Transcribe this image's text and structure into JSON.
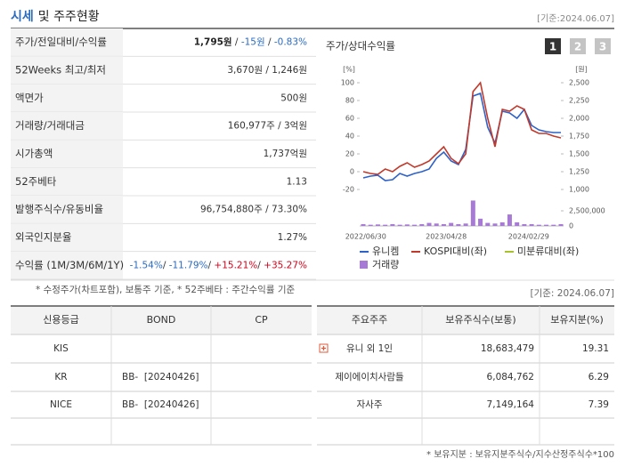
{
  "header": {
    "title_main": "시세",
    "title_sub": "및 주주현황",
    "date": "[기준:2024.06.07]"
  },
  "summary": {
    "rows": [
      {
        "label": "주가/전일대비/수익률",
        "value": [
          {
            "text": "1,795원",
            "tone": "bold"
          },
          {
            "text": " / ",
            "tone": "plain"
          },
          {
            "text": "-15원",
            "tone": "down"
          },
          {
            "text": " / ",
            "tone": "plain"
          },
          {
            "text": "-0.83%",
            "tone": "down"
          }
        ]
      },
      {
        "label": "52Weeks 최고/최저",
        "value": "3,670원 / 1,246원"
      },
      {
        "label": "액면가",
        "value": "500원"
      },
      {
        "label": "거래량/거래대금",
        "value": "160,977주 / 3억원"
      },
      {
        "label": "시가총액",
        "value": "1,737억원"
      },
      {
        "label": "52주베타",
        "value": "1.13"
      },
      {
        "label": "발행주식수/유동비율",
        "value": "96,754,880주 / 73.30%"
      },
      {
        "label": "외국인지분율",
        "value": "1.27%"
      },
      {
        "label": "수익률 (1M/3M/6M/1Y)",
        "value": [
          {
            "text": "-1.54%",
            "tone": "down"
          },
          {
            "text": "/ ",
            "tone": "plain"
          },
          {
            "text": "-11.79%",
            "tone": "down"
          },
          {
            "text": "/ ",
            "tone": "plain"
          },
          {
            "text": "+15.21%",
            "tone": "up"
          },
          {
            "text": "/ ",
            "tone": "plain"
          },
          {
            "text": "+35.27%",
            "tone": "up"
          }
        ]
      }
    ],
    "note": "* 수정주가(차트포함), 보통주 기준, * 52주베타 : 주간수익률 기준"
  },
  "chart_data": {
    "type": "line",
    "title": "주가/상대수익률",
    "buttons": [
      "1",
      "2",
      "3"
    ],
    "y_unit": "[%]",
    "y2_unit": "[원]",
    "ylim": [
      -20,
      100
    ],
    "yticks": [
      -20,
      0,
      20,
      40,
      60,
      80,
      100
    ],
    "y2lim": [
      1000,
      2500
    ],
    "y2ticks": [
      {
        "value": 1000,
        "label": "1,000"
      },
      {
        "value": 1250,
        "label": "1,250"
      },
      {
        "value": 1500,
        "label": "1,500"
      },
      {
        "value": 1750,
        "label": "1,750"
      },
      {
        "value": 2000,
        "label": "2,000"
      },
      {
        "value": 2250,
        "label": "2,250"
      },
      {
        "value": 2500,
        "label": "2,500"
      }
    ],
    "y3lim": [
      0,
      2500000
    ],
    "y3ticks": [
      0,
      {
        "value": 2500000,
        "label": "2,500,000"
      }
    ],
    "xtick_labels": [
      "2022/06/30",
      "2023/04/28",
      "2024/02/29"
    ],
    "series": [
      {
        "name": "유니켐",
        "color": "#2e62c8",
        "values": [
          -7,
          -5,
          -4,
          -10,
          -9,
          -2,
          -5,
          -2,
          0,
          3,
          15,
          22,
          12,
          8,
          25,
          85,
          88,
          50,
          32,
          68,
          66,
          60,
          70,
          52,
          47,
          45,
          44,
          44
        ]
      },
      {
        "name": "KOSPI대비(좌)",
        "color": "#c0392b",
        "values": [
          0,
          -2,
          -3,
          3,
          0,
          6,
          10,
          5,
          8,
          12,
          20,
          28,
          15,
          9,
          20,
          90,
          100,
          60,
          28,
          70,
          68,
          74,
          70,
          47,
          43,
          43,
          40,
          38
        ]
      },
      {
        "name": "미분류대비(좌)",
        "color": "#a8c32a"
      },
      {
        "name": "거래량",
        "color": "#a77ad6",
        "type": "bar",
        "axis": "y3",
        "values": [
          300000,
          200000,
          250000,
          200000,
          300000,
          200000,
          250000,
          200000,
          300000,
          500000,
          400000,
          300000,
          500000,
          300000,
          400000,
          4200000,
          1200000,
          500000,
          400000,
          600000,
          1900000,
          600000,
          300000,
          300000,
          200000,
          200000,
          200000,
          300000
        ]
      }
    ]
  },
  "credit": {
    "headers": [
      "신용등급",
      "BOND",
      "CP"
    ],
    "rows": [
      [
        "KIS",
        null,
        null
      ],
      [
        "KR",
        "BB-  [20240426]",
        null
      ],
      [
        "NICE",
        "BB-  [20240426]",
        null
      ],
      [
        null,
        null,
        null
      ]
    ]
  },
  "holders": {
    "date": "[기준: 2024.06.07]",
    "headers": [
      "주요주주",
      "보유주식수(보통)",
      "보유지분(%)"
    ],
    "rows": [
      [
        "유니 외 1인",
        "18,683,479",
        "19.31"
      ],
      [
        "제이에이치사람들",
        "6,084,762",
        "6.29"
      ],
      [
        "자사주",
        "7,149,164",
        "7.39"
      ],
      [
        null,
        null,
        null
      ]
    ],
    "note": "* 보유지분 : 보유지분주식수/지수산정주식수*100"
  }
}
